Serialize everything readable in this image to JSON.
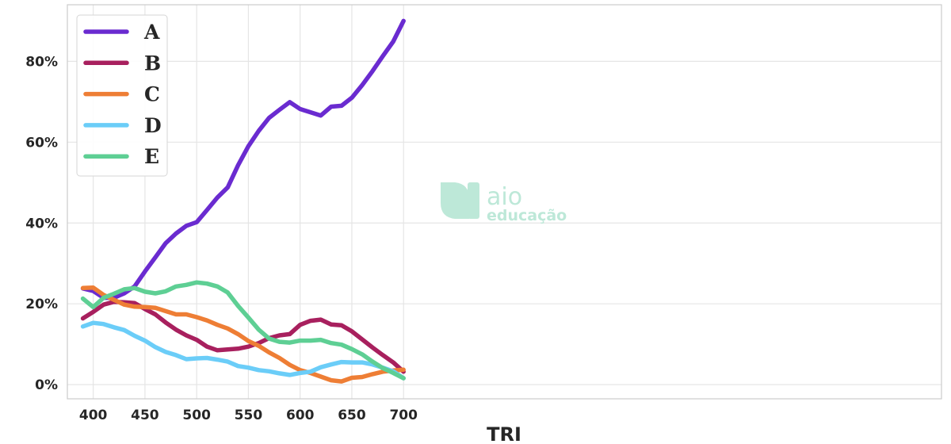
{
  "chart_data": {
    "type": "line",
    "title": "",
    "xlabel": "TRI",
    "ylabel": "",
    "xlim": [
      375,
      1220
    ],
    "ylim": [
      -3.5,
      94
    ],
    "x_ticks": [
      400,
      450,
      500,
      550,
      600,
      650,
      700
    ],
    "y_ticks": [
      0,
      20,
      40,
      60,
      80
    ],
    "y_tick_labels": [
      "0%",
      "20%",
      "40%",
      "60%",
      "80%"
    ],
    "grid": true,
    "legend_position": "top-left",
    "x": [
      390,
      400,
      410,
      420,
      430,
      440,
      450,
      460,
      470,
      480,
      490,
      500,
      510,
      520,
      530,
      540,
      550,
      560,
      570,
      580,
      590,
      600,
      610,
      620,
      630,
      640,
      650,
      660,
      670,
      680,
      690,
      700
    ],
    "series": [
      {
        "name": "A",
        "color": "#6a2bd0",
        "values": [
          23.8,
          23.2,
          21.5,
          21.5,
          22.6,
          24.3,
          28.0,
          31.5,
          35.0,
          37.4,
          39.3,
          40.2,
          43.2,
          46.3,
          48.8,
          54.3,
          59.0,
          62.8,
          66.0,
          68.0,
          69.9,
          68.2,
          67.4,
          66.6,
          68.8,
          69.0,
          71.0,
          74.1,
          77.6,
          81.3,
          84.9,
          90.0
        ]
      },
      {
        "name": "B",
        "color": "#a8205e",
        "values": [
          16.4,
          18.0,
          19.8,
          20.5,
          20.4,
          20.2,
          18.7,
          17.4,
          15.4,
          13.6,
          12.2,
          11.1,
          9.4,
          8.5,
          8.7,
          8.9,
          9.4,
          10.3,
          11.5,
          12.2,
          12.5,
          14.8,
          15.8,
          16.1,
          14.9,
          14.7,
          13.2,
          11.2,
          9.2,
          7.3,
          5.5,
          3.2
        ]
      },
      {
        "name": "C",
        "color": "#ee7e35",
        "values": [
          23.9,
          24.0,
          22.2,
          21.0,
          19.8,
          19.3,
          19.2,
          19.0,
          18.2,
          17.4,
          17.4,
          16.7,
          15.9,
          14.8,
          13.9,
          12.5,
          10.8,
          9.6,
          8.0,
          6.6,
          4.9,
          3.6,
          2.9,
          2.0,
          1.1,
          0.8,
          1.7,
          1.9,
          2.6,
          3.2,
          3.5,
          3.7
        ]
      },
      {
        "name": "D",
        "color": "#6bcdf8",
        "values": [
          14.4,
          15.3,
          15.0,
          14.2,
          13.5,
          12.1,
          10.9,
          9.3,
          8.1,
          7.3,
          6.3,
          6.5,
          6.6,
          6.2,
          5.7,
          4.6,
          4.2,
          3.6,
          3.3,
          2.8,
          2.4,
          2.9,
          3.2,
          4.3,
          5.0,
          5.6,
          5.5,
          5.5,
          5.0,
          4.2,
          3.3,
          1.6
        ]
      },
      {
        "name": "E",
        "color": "#5ecf94",
        "values": [
          21.3,
          19.2,
          21.5,
          22.5,
          23.6,
          23.9,
          23.0,
          22.6,
          23.1,
          24.3,
          24.7,
          25.3,
          25.0,
          24.3,
          22.8,
          19.5,
          16.6,
          13.6,
          11.4,
          10.6,
          10.4,
          10.9,
          10.9,
          11.1,
          10.3,
          9.9,
          8.8,
          7.5,
          5.7,
          4.1,
          2.9,
          1.6
        ]
      }
    ]
  },
  "watermark": {
    "line1": "aio",
    "line2": "educação",
    "color": "#bde8d8"
  }
}
